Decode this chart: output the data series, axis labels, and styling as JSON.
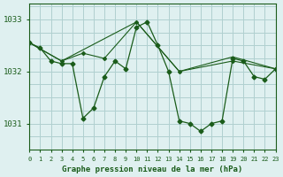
{
  "background_color": "#dff0f0",
  "grid_color": "#b0d0d0",
  "line_color": "#1a5c1a",
  "title": "Graphe pression niveau de la mer (hPa)",
  "ylabel_ticks": [
    1031,
    1032,
    1033
  ],
  "xlim": [
    0,
    23
  ],
  "ylim": [
    1030.5,
    1033.3
  ],
  "series": [
    {
      "x": [
        0,
        1,
        2,
        3,
        4,
        5,
        6,
        7,
        8,
        9,
        10,
        11,
        12,
        13,
        14,
        15,
        16,
        17,
        18,
        19,
        20,
        21,
        22,
        23
      ],
      "y": [
        1032.55,
        1032.45,
        1032.2,
        1032.15,
        1032.15,
        1031.1,
        1031.3,
        1031.9,
        1032.2,
        1032.05,
        1032.85,
        1032.95,
        1032.5,
        1032.0,
        1031.05,
        1031.0,
        1030.85,
        1031.0,
        1031.05,
        1032.25,
        1032.2,
        1031.9,
        1031.85,
        1032.05
      ],
      "marker": "D",
      "markersize": 2.5,
      "linewidth": 0.9
    },
    {
      "x": [
        0,
        3,
        5,
        7,
        10,
        14,
        19,
        23
      ],
      "y": [
        1032.55,
        1032.2,
        1032.35,
        1032.25,
        1032.95,
        1032.0,
        1032.2,
        1032.05
      ],
      "marker": "D",
      "markersize": 2.0,
      "linewidth": 0.8
    },
    {
      "x": [
        0,
        3,
        10,
        14,
        19,
        23
      ],
      "y": [
        1032.55,
        1032.2,
        1032.95,
        1032.0,
        1032.28,
        1032.05
      ],
      "marker": null,
      "markersize": 0,
      "linewidth": 0.8
    }
  ],
  "xtick_labels": [
    "0",
    "1",
    "2",
    "3",
    "4",
    "5",
    "6",
    "7",
    "8",
    "9",
    "10",
    "11",
    "12",
    "13",
    "14",
    "15",
    "16",
    "17",
    "18",
    "19",
    "20",
    "21",
    "22",
    "23"
  ]
}
